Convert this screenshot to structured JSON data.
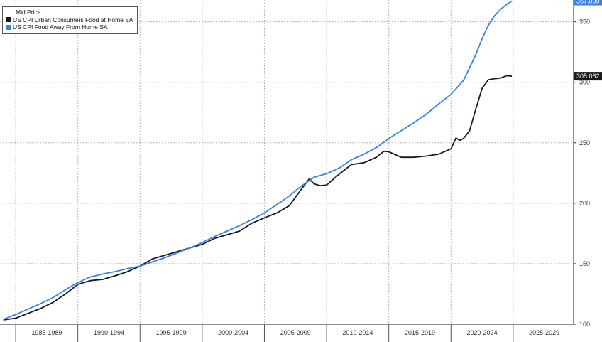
{
  "legend": {
    "title": "Mid Price",
    "items": [
      {
        "label": "US CPI Urban Consumers Food at Home SA",
        "color": "#1a1a1a"
      },
      {
        "label": "US CPI Food Away From Home SA",
        "color": "#3b82e6"
      }
    ]
  },
  "chart_data": {
    "type": "line",
    "ylim": [
      100,
      368
    ],
    "y_ticks": [
      100,
      150,
      200,
      250,
      300,
      350
    ],
    "x_categories": [
      "1985-1989",
      "1990-1994",
      "1995-1999",
      "2000-2004",
      "2005-2009",
      "2010-2014",
      "2015-2019",
      "2020-2024",
      "2025-2029"
    ],
    "grid": true,
    "legend_position": "top-left",
    "last_value_labels": [
      {
        "series": "US CPI Food Away From Home SA",
        "text": "367.099",
        "bg": "#3b82e6"
      },
      {
        "series": "US CPI Urban Consumers Food at Home SA",
        "text": "305.062",
        "bg": "#1a1a1a"
      }
    ],
    "series": [
      {
        "name": "US CPI Urban Consumers Food at Home SA",
        "color": "#1a1a1a",
        "x": [
          1984.0,
          1985.0,
          1986.0,
          1987.0,
          1988.0,
          1989.0,
          1990.0,
          1991.0,
          1992.0,
          1993.0,
          1994.0,
          1995.0,
          1996.0,
          1997.0,
          1998.0,
          1999.0,
          2000.0,
          2001.0,
          2002.0,
          2003.0,
          2004.0,
          2005.0,
          2006.0,
          2007.0,
          2008.0,
          2008.6,
          2009.0,
          2009.5,
          2010.0,
          2011.0,
          2012.0,
          2013.0,
          2014.0,
          2014.6,
          2015.0,
          2016.0,
          2017.0,
          2018.0,
          2019.0,
          2020.0,
          2020.4,
          2020.7,
          2021.0,
          2021.5,
          2022.0,
          2022.5,
          2023.0,
          2023.5,
          2024.0,
          2024.5,
          2024.9
        ],
        "values": [
          103.5,
          105.0,
          109.0,
          113.0,
          118.0,
          125.0,
          133.0,
          136.0,
          137.0,
          140.0,
          143.5,
          148.0,
          154.0,
          157.0,
          160.0,
          163.0,
          166.0,
          171.0,
          174.0,
          177.0,
          183.5,
          188.0,
          192.0,
          198.0,
          212.0,
          220.0,
          216.0,
          214.5,
          215.0,
          224.0,
          232.0,
          233.5,
          238.0,
          243.0,
          242.5,
          238.0,
          238.0,
          239.0,
          240.5,
          245.0,
          254.0,
          252.0,
          253.5,
          260.0,
          278.0,
          295.0,
          302.0,
          303.0,
          303.5,
          305.5,
          305.062
        ]
      },
      {
        "name": "US CPI Food Away From Home SA",
        "color": "#3b82e6",
        "x": [
          1984.0,
          1985.0,
          1986.0,
          1987.0,
          1988.0,
          1989.0,
          1990.0,
          1991.0,
          1992.0,
          1993.0,
          1994.0,
          1995.0,
          1996.0,
          1997.0,
          1998.0,
          1999.0,
          2000.0,
          2001.0,
          2002.0,
          2003.0,
          2004.0,
          2005.0,
          2006.0,
          2007.0,
          2008.0,
          2009.0,
          2010.0,
          2011.0,
          2012.0,
          2013.0,
          2014.0,
          2015.0,
          2016.0,
          2017.0,
          2018.0,
          2019.0,
          2020.0,
          2021.0,
          2021.5,
          2022.0,
          2022.5,
          2023.0,
          2023.5,
          2024.0,
          2024.5,
          2024.9
        ],
        "values": [
          104.0,
          108.0,
          112.5,
          117.0,
          122.0,
          128.5,
          134.5,
          139.0,
          141.5,
          143.5,
          146.0,
          148.0,
          151.5,
          155.0,
          159.0,
          163.0,
          167.5,
          172.5,
          177.0,
          181.5,
          186.5,
          192.0,
          199.0,
          206.0,
          214.5,
          221.5,
          224.5,
          229.0,
          236.0,
          240.5,
          246.0,
          253.5,
          260.0,
          266.5,
          273.5,
          282.0,
          290.0,
          301.5,
          312.0,
          323.0,
          336.0,
          347.0,
          355.0,
          360.5,
          364.5,
          367.099
        ]
      }
    ]
  }
}
